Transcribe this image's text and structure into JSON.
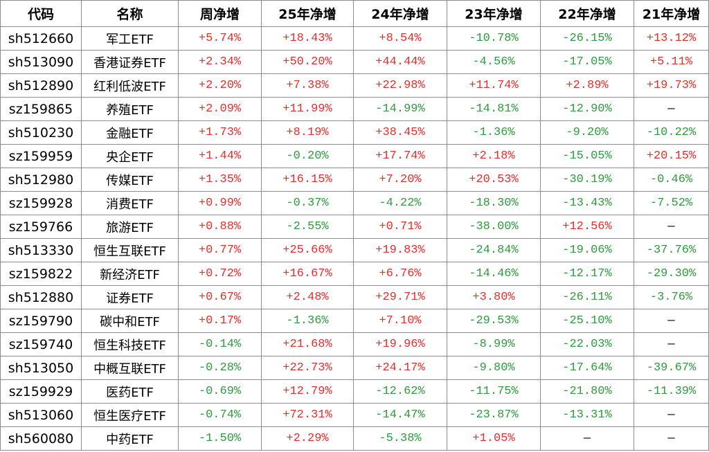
{
  "table": {
    "header": [
      "代码",
      "名称",
      "周净增",
      "25年净增",
      "24年净增",
      "23年净增",
      "22年净增",
      "21年净增"
    ],
    "rows": [
      [
        "sh512660",
        "军工ETF",
        "+5.74%",
        "+18.43%",
        "+8.54%",
        "-10.78%",
        "-26.15%",
        "+13.12%"
      ],
      [
        "sh513090",
        "香港证券ETF",
        "+2.34%",
        "+50.20%",
        "+44.44%",
        "-4.56%",
        "-17.05%",
        "+5.11%"
      ],
      [
        "sh512890",
        "红利低波ETF",
        "+2.20%",
        "+7.38%",
        "+22.98%",
        "+11.74%",
        "+2.89%",
        "+19.73%"
      ],
      [
        "sz159865",
        "养殖ETF",
        "+2.09%",
        "+11.99%",
        "-14.99%",
        "-14.81%",
        "-12.90%",
        "—"
      ],
      [
        "sh510230",
        "金融ETF",
        "+1.73%",
        "+8.19%",
        "+38.45%",
        "-1.36%",
        "-9.20%",
        "-10.22%"
      ],
      [
        "sz159959",
        "央企ETF",
        "+1.44%",
        "-0.20%",
        "+17.74%",
        "+2.18%",
        "-15.05%",
        "+20.15%"
      ],
      [
        "sh512980",
        "传媒ETF",
        "+1.35%",
        "+16.15%",
        "+7.20%",
        "+20.53%",
        "-30.19%",
        "-0.46%"
      ],
      [
        "sz159928",
        "消费ETF",
        "+0.99%",
        "-0.37%",
        "-4.22%",
        "-18.30%",
        "-13.43%",
        "-7.52%"
      ],
      [
        "sz159766",
        "旅游ETF",
        "+0.88%",
        "-2.55%",
        "+0.71%",
        "-38.00%",
        "+12.56%",
        "—"
      ],
      [
        "sh513330",
        "恒生互联ETF",
        "+0.77%",
        "+25.66%",
        "+19.83%",
        "-24.84%",
        "-19.06%",
        "-37.76%"
      ],
      [
        "sz159822",
        "新经济ETF",
        "+0.72%",
        "+16.67%",
        "+6.76%",
        "-14.46%",
        "-12.17%",
        "-29.30%"
      ],
      [
        "sh512880",
        "证券ETF",
        "+0.67%",
        "+2.48%",
        "+29.71%",
        "+3.80%",
        "-26.11%",
        "-3.76%"
      ],
      [
        "sz159790",
        "碳中和ETF",
        "+0.17%",
        "-1.36%",
        "+7.10%",
        "-29.53%",
        "-25.10%",
        "—"
      ],
      [
        "sz159740",
        "恒生科技ETF",
        "-0.14%",
        "+21.68%",
        "+19.96%",
        "-8.99%",
        "-22.03%",
        "—"
      ],
      [
        "sh513050",
        "中概互联ETF",
        "-0.28%",
        "+22.73%",
        "+24.17%",
        "-9.80%",
        "-17.64%",
        "-39.67%"
      ],
      [
        "sz159929",
        "医药ETF",
        "-0.69%",
        "+12.79%",
        "-12.62%",
        "-11.75%",
        "-21.80%",
        "-11.39%"
      ],
      [
        "sh513060",
        "恒生医疗ETF",
        "-0.74%",
        "+72.31%",
        "-14.47%",
        "-23.87%",
        "-13.31%",
        "—"
      ],
      [
        "sh560080",
        "中药ETF",
        "-1.50%",
        "+2.29%",
        "-5.38%",
        "+1.05%",
        "—",
        "—"
      ]
    ]
  }
}
